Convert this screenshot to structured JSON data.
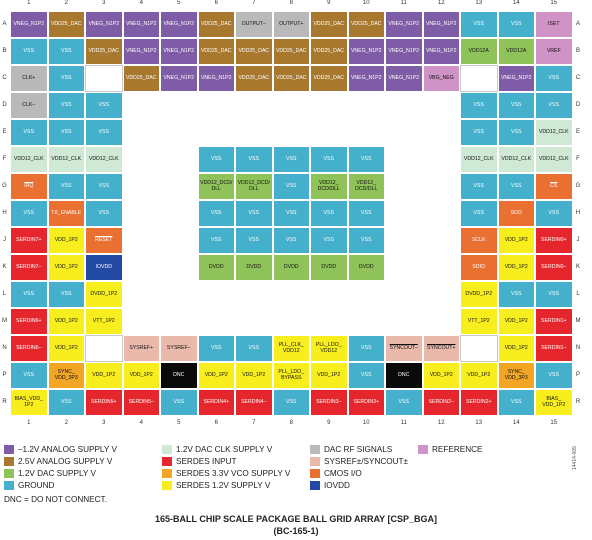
{
  "columns": [
    "1",
    "2",
    "3",
    "4",
    "5",
    "6",
    "7",
    "8",
    "9",
    "10",
    "11",
    "12",
    "13",
    "14",
    "15"
  ],
  "rows": [
    "A",
    "B",
    "C",
    "D",
    "E",
    "F",
    "G",
    "H",
    "J",
    "K",
    "L",
    "M",
    "N",
    "P",
    "R"
  ],
  "colors": {
    "analog_1v2": "#7f5da6",
    "analog_2v5": "#a8782f",
    "dac_1v2": "#8fc35a",
    "ground": "#45b0cb",
    "dac_clk": "#cfe9d4",
    "serdes_in": "#e5272d",
    "serdes_vco": "#f2a623",
    "serdes_1v2": "#f8ee1e",
    "dac_rf": "#b9b9b9",
    "sysref": "#eab9ac",
    "cmos": "#ea7032",
    "iovdd": "#2249a3",
    "reference": "#cf93c6",
    "dnc": "#0a0a0a"
  },
  "balls": [
    {
      "row": 0,
      "col": 0,
      "label": "VNEG_N1P2",
      "type": "analog_1v2"
    },
    {
      "row": 0,
      "col": 1,
      "label": "VDD25_DAC",
      "type": "analog_2v5"
    },
    {
      "row": 0,
      "col": 2,
      "label": "VNEG_N1P2",
      "type": "analog_1v2"
    },
    {
      "row": 0,
      "col": 3,
      "label": "VNEG_N1P2",
      "type": "analog_1v2"
    },
    {
      "row": 0,
      "col": 4,
      "label": "VNEG_N1P2",
      "type": "analog_1v2"
    },
    {
      "row": 0,
      "col": 5,
      "label": "VDD25_DAC",
      "type": "analog_2v5"
    },
    {
      "row": 0,
      "col": 6,
      "label": "OUTPUT–",
      "type": "dac_rf"
    },
    {
      "row": 0,
      "col": 7,
      "label": "OUTPUT+",
      "type": "dac_rf"
    },
    {
      "row": 0,
      "col": 8,
      "label": "VDD25_DAC",
      "type": "analog_2v5"
    },
    {
      "row": 0,
      "col": 9,
      "label": "VDD25_DAC",
      "type": "analog_2v5"
    },
    {
      "row": 0,
      "col": 10,
      "label": "VNEG_N1P2",
      "type": "analog_1v2"
    },
    {
      "row": 0,
      "col": 11,
      "label": "VNEG_N1P2",
      "type": "analog_1v2"
    },
    {
      "row": 0,
      "col": 12,
      "label": "VSS",
      "type": "ground"
    },
    {
      "row": 0,
      "col": 13,
      "label": "VSS",
      "type": "ground"
    },
    {
      "row": 0,
      "col": 14,
      "label": "ISET",
      "type": "reference"
    },
    {
      "row": 1,
      "col": 0,
      "label": "VSS",
      "type": "ground"
    },
    {
      "row": 1,
      "col": 1,
      "label": "VSS",
      "type": "ground"
    },
    {
      "row": 1,
      "col": 2,
      "label": "VDD25_DAC",
      "type": "analog_2v5"
    },
    {
      "row": 1,
      "col": 3,
      "label": "VNEG_N1P2",
      "type": "analog_1v2"
    },
    {
      "row": 1,
      "col": 4,
      "label": "VNEG_N1P2",
      "type": "analog_1v2"
    },
    {
      "row": 1,
      "col": 5,
      "label": "VDD25_DAC",
      "type": "analog_2v5"
    },
    {
      "row": 1,
      "col": 6,
      "label": "VDD25_DAC",
      "type": "analog_2v5"
    },
    {
      "row": 1,
      "col": 7,
      "label": "VDD25_DAC",
      "type": "analog_2v5"
    },
    {
      "row": 1,
      "col": 8,
      "label": "VDD25_DAC",
      "type": "analog_2v5"
    },
    {
      "row": 1,
      "col": 9,
      "label": "VNEG_N1P2",
      "type": "analog_1v2"
    },
    {
      "row": 1,
      "col": 10,
      "label": "VNEG_N1P2",
      "type": "analog_1v2"
    },
    {
      "row": 1,
      "col": 11,
      "label": "VNEG_N1P2",
      "type": "analog_1v2"
    },
    {
      "row": 1,
      "col": 12,
      "label": "VDD12A",
      "type": "dac_1v2"
    },
    {
      "row": 1,
      "col": 13,
      "label": "VDD12A",
      "type": "dac_1v2"
    },
    {
      "row": 1,
      "col": 14,
      "label": "VREF",
      "type": "reference"
    },
    {
      "row": 2,
      "col": 0,
      "label": "CLK+",
      "type": "dac_rf"
    },
    {
      "row": 2,
      "col": 1,
      "label": "VSS",
      "type": "ground"
    },
    {
      "row": 2,
      "col": 3,
      "label": "VDD25_DAC",
      "type": "analog_2v5"
    },
    {
      "row": 2,
      "col": 4,
      "label": "VNEG_N1P2",
      "type": "analog_1v2"
    },
    {
      "row": 2,
      "col": 5,
      "label": "VNEG_N1P2",
      "type": "analog_1v2"
    },
    {
      "row": 2,
      "col": 6,
      "label": "VDD25_DAC",
      "type": "analog_2v5"
    },
    {
      "row": 2,
      "col": 7,
      "label": "VDD25_DAC",
      "type": "analog_2v5"
    },
    {
      "row": 2,
      "col": 8,
      "label": "VDD25_DAC",
      "type": "analog_2v5"
    },
    {
      "row": 2,
      "col": 9,
      "label": "VNEG_N1P2",
      "type": "analog_1v2"
    },
    {
      "row": 2,
      "col": 10,
      "label": "VNEG_N1P2",
      "type": "analog_1v2"
    },
    {
      "row": 2,
      "col": 11,
      "label": "VBG_NEG",
      "type": "reference"
    },
    {
      "row": 2,
      "col": 13,
      "label": "VNEG_N1P2",
      "type": "analog_1v2"
    },
    {
      "row": 2,
      "col": 14,
      "label": "VSS",
      "type": "ground"
    },
    {
      "row": 3,
      "col": 0,
      "label": "CLK–",
      "type": "dac_rf"
    },
    {
      "row": 3,
      "col": 1,
      "label": "VSS",
      "type": "ground"
    },
    {
      "row": 3,
      "col": 2,
      "label": "VSS",
      "type": "ground"
    },
    {
      "row": 3,
      "col": 12,
      "label": "VSS",
      "type": "ground"
    },
    {
      "row": 3,
      "col": 13,
      "label": "VSS",
      "type": "ground"
    },
    {
      "row": 3,
      "col": 14,
      "label": "VSS",
      "type": "ground"
    },
    {
      "row": 4,
      "col": 0,
      "label": "VSS",
      "type": "ground"
    },
    {
      "row": 4,
      "col": 1,
      "label": "VSS",
      "type": "ground"
    },
    {
      "row": 4,
      "col": 2,
      "label": "VSS",
      "type": "ground"
    },
    {
      "row": 4,
      "col": 12,
      "label": "VSS",
      "type": "ground"
    },
    {
      "row": 4,
      "col": 13,
      "label": "VSS",
      "type": "ground"
    },
    {
      "row": 4,
      "col": 14,
      "label": "VDD12_CLK",
      "type": "dac_clk"
    },
    {
      "row": 5,
      "col": 0,
      "label": "VDD12_CLK",
      "type": "dac_clk"
    },
    {
      "row": 5,
      "col": 1,
      "label": "VDD12_CLK",
      "type": "dac_clk"
    },
    {
      "row": 5,
      "col": 2,
      "label": "VDD12_CLK",
      "type": "dac_clk"
    },
    {
      "row": 5,
      "col": 5,
      "label": "VSS",
      "type": "ground"
    },
    {
      "row": 5,
      "col": 6,
      "label": "VSS",
      "type": "ground"
    },
    {
      "row": 5,
      "col": 7,
      "label": "VSS",
      "type": "ground"
    },
    {
      "row": 5,
      "col": 8,
      "label": "VSS",
      "type": "ground"
    },
    {
      "row": 5,
      "col": 9,
      "label": "VSS",
      "type": "ground"
    },
    {
      "row": 5,
      "col": 12,
      "label": "VDD12_CLK",
      "type": "dac_clk"
    },
    {
      "row": 5,
      "col": 13,
      "label": "VDD12_CLK",
      "type": "dac_clk"
    },
    {
      "row": 5,
      "col": 14,
      "label": "VDD12_CLK",
      "type": "dac_clk"
    },
    {
      "row": 6,
      "col": 0,
      "label": "IRQ",
      "type": "cmos",
      "overline": true
    },
    {
      "row": 6,
      "col": 1,
      "label": "VSS",
      "type": "ground"
    },
    {
      "row": 6,
      "col": 2,
      "label": "VSS",
      "type": "ground"
    },
    {
      "row": 6,
      "col": 5,
      "label": "VDD12_DCD/ DLL",
      "type": "dac_1v2"
    },
    {
      "row": 6,
      "col": 6,
      "label": "VDD12_DCD/ DLL",
      "type": "dac_1v2"
    },
    {
      "row": 6,
      "col": 7,
      "label": "VSS",
      "type": "ground"
    },
    {
      "row": 6,
      "col": 8,
      "label": "VDD12_ DCD/DLL",
      "type": "dac_1v2"
    },
    {
      "row": 6,
      "col": 9,
      "label": "VDD12_ DCD/DLL",
      "type": "dac_1v2"
    },
    {
      "row": 6,
      "col": 12,
      "label": "VSS",
      "type": "ground"
    },
    {
      "row": 6,
      "col": 13,
      "label": "VSS",
      "type": "ground"
    },
    {
      "row": 6,
      "col": 14,
      "label": "CS",
      "type": "cmos",
      "overline": true
    },
    {
      "row": 7,
      "col": 0,
      "label": "VSS",
      "type": "ground"
    },
    {
      "row": 7,
      "col": 1,
      "label": "TX_ENABLE",
      "type": "cmos"
    },
    {
      "row": 7,
      "col": 2,
      "label": "VSS",
      "type": "ground"
    },
    {
      "row": 7,
      "col": 5,
      "label": "VSS",
      "type": "ground"
    },
    {
      "row": 7,
      "col": 6,
      "label": "VSS",
      "type": "ground"
    },
    {
      "row": 7,
      "col": 7,
      "label": "VSS",
      "type": "ground"
    },
    {
      "row": 7,
      "col": 8,
      "label": "VSS",
      "type": "ground"
    },
    {
      "row": 7,
      "col": 9,
      "label": "VSS",
      "type": "ground"
    },
    {
      "row": 7,
      "col": 12,
      "label": "VSS",
      "type": "ground"
    },
    {
      "row": 7,
      "col": 13,
      "label": "SDO",
      "type": "cmos"
    },
    {
      "row": 7,
      "col": 14,
      "label": "VSS",
      "type": "ground"
    },
    {
      "row": 8,
      "col": 0,
      "label": "SERDIN7+",
      "type": "serdes_in"
    },
    {
      "row": 8,
      "col": 1,
      "label": "VDD_1P2",
      "type": "serdes_1v2"
    },
    {
      "row": 8,
      "col": 2,
      "label": "RESET",
      "type": "cmos",
      "overline": true
    },
    {
      "row": 8,
      "col": 5,
      "label": "VSS",
      "type": "ground"
    },
    {
      "row": 8,
      "col": 6,
      "label": "VSS",
      "type": "ground"
    },
    {
      "row": 8,
      "col": 7,
      "label": "VSS",
      "type": "ground"
    },
    {
      "row": 8,
      "col": 8,
      "label": "VSS",
      "type": "ground"
    },
    {
      "row": 8,
      "col": 9,
      "label": "VSS",
      "type": "ground"
    },
    {
      "row": 8,
      "col": 12,
      "label": "SCLK",
      "type": "cmos"
    },
    {
      "row": 8,
      "col": 13,
      "label": "VDD_1P2",
      "type": "serdes_1v2"
    },
    {
      "row": 8,
      "col": 14,
      "label": "SERDIN0+",
      "type": "serdes_in"
    },
    {
      "row": 9,
      "col": 0,
      "label": "SERDIN7–",
      "type": "serdes_in"
    },
    {
      "row": 9,
      "col": 1,
      "label": "VDD_1P2",
      "type": "serdes_1v2"
    },
    {
      "row": 9,
      "col": 2,
      "label": "IOVDD",
      "type": "iovdd"
    },
    {
      "row": 9,
      "col": 5,
      "label": "DVDD",
      "type": "dac_1v2"
    },
    {
      "row": 9,
      "col": 6,
      "label": "DVDD",
      "type": "dac_1v2"
    },
    {
      "row": 9,
      "col": 7,
      "label": "DVDD",
      "type": "dac_1v2"
    },
    {
      "row": 9,
      "col": 8,
      "label": "DVDD",
      "type": "dac_1v2"
    },
    {
      "row": 9,
      "col": 9,
      "label": "DVDD",
      "type": "dac_1v2"
    },
    {
      "row": 9,
      "col": 12,
      "label": "SDIO",
      "type": "cmos"
    },
    {
      "row": 9,
      "col": 13,
      "label": "VDD_1P2",
      "type": "serdes_1v2"
    },
    {
      "row": 9,
      "col": 14,
      "label": "SERDIN0–",
      "type": "serdes_in"
    },
    {
      "row": 10,
      "col": 0,
      "label": "VSS",
      "type": "ground"
    },
    {
      "row": 10,
      "col": 1,
      "label": "VSS",
      "type": "ground"
    },
    {
      "row": 10,
      "col": 2,
      "label": "DVDD_1P2",
      "type": "serdes_1v2"
    },
    {
      "row": 10,
      "col": 12,
      "label": "DVDD_1P2",
      "type": "serdes_1v2"
    },
    {
      "row": 10,
      "col": 13,
      "label": "VSS",
      "type": "ground"
    },
    {
      "row": 10,
      "col": 14,
      "label": "VSS",
      "type": "ground"
    },
    {
      "row": 11,
      "col": 0,
      "label": "SERDIN6+",
      "type": "serdes_in"
    },
    {
      "row": 11,
      "col": 1,
      "label": "VDD_1P2",
      "type": "serdes_1v2"
    },
    {
      "row": 11,
      "col": 2,
      "label": "VTT_1P2",
      "type": "serdes_1v2"
    },
    {
      "row": 11,
      "col": 12,
      "label": "VTT_1P2",
      "type": "serdes_1v2"
    },
    {
      "row": 11,
      "col": 13,
      "label": "VDD_1P2",
      "type": "serdes_1v2"
    },
    {
      "row": 11,
      "col": 14,
      "label": "SERDIN1+",
      "type": "serdes_in"
    },
    {
      "row": 12,
      "col": 0,
      "label": "SERDIN6–",
      "type": "serdes_in"
    },
    {
      "row": 12,
      "col": 1,
      "label": "VDD_1P2",
      "type": "serdes_1v2"
    },
    {
      "row": 12,
      "col": 3,
      "label": "SYSREF+",
      "type": "sysref"
    },
    {
      "row": 12,
      "col": 4,
      "label": "SYSREF–",
      "type": "sysref"
    },
    {
      "row": 12,
      "col": 5,
      "label": "VSS",
      "type": "ground"
    },
    {
      "row": 12,
      "col": 6,
      "label": "VSS",
      "type": "ground"
    },
    {
      "row": 12,
      "col": 7,
      "label": "PLL_CLK_ VDD12",
      "type": "serdes_1v2"
    },
    {
      "row": 12,
      "col": 8,
      "label": "PLL_LDO_ VDD12",
      "type": "serdes_1v2"
    },
    {
      "row": 12,
      "col": 9,
      "label": "VSS",
      "type": "ground"
    },
    {
      "row": 12,
      "col": 10,
      "label": "SYNCOUT–",
      "type": "sysref",
      "overline": true
    },
    {
      "row": 12,
      "col": 11,
      "label": "SYNCOUT+",
      "type": "sysref",
      "overline": true
    },
    {
      "row": 12,
      "col": 13,
      "label": "VDD_1P2",
      "type": "serdes_1v2"
    },
    {
      "row": 12,
      "col": 14,
      "label": "SERDIN1–",
      "type": "serdes_in"
    },
    {
      "row": 13,
      "col": 0,
      "label": "VSS",
      "type": "ground"
    },
    {
      "row": 13,
      "col": 1,
      "label": "SYNC_ VDD_3P3",
      "type": "serdes_vco"
    },
    {
      "row": 13,
      "col": 2,
      "label": "VDD_1P2",
      "type": "serdes_1v2"
    },
    {
      "row": 13,
      "col": 3,
      "label": "VDD_1P2",
      "type": "serdes_1v2"
    },
    {
      "row": 13,
      "col": 4,
      "label": "DNC",
      "type": "dnc"
    },
    {
      "row": 13,
      "col": 5,
      "label": "VDD_1P2",
      "type": "serdes_1v2"
    },
    {
      "row": 13,
      "col": 6,
      "label": "VDD_1P2",
      "type": "serdes_1v2"
    },
    {
      "row": 13,
      "col": 7,
      "label": "PLL_LDO_ BYPASS",
      "type": "serdes_1v2"
    },
    {
      "row": 13,
      "col": 8,
      "label": "VDD_1P2",
      "type": "serdes_1v2"
    },
    {
      "row": 13,
      "col": 9,
      "label": "VSS",
      "type": "ground"
    },
    {
      "row": 13,
      "col": 10,
      "label": "DNC",
      "type": "dnc"
    },
    {
      "row": 13,
      "col": 11,
      "label": "VDD_1P2",
      "type": "serdes_1v2"
    },
    {
      "row": 13,
      "col": 12,
      "label": "VDD_1P2",
      "type": "serdes_1v2"
    },
    {
      "row": 13,
      "col": 13,
      "label": "SYNC_ VDD_3P3",
      "type": "serdes_vco"
    },
    {
      "row": 13,
      "col": 14,
      "label": "VSS",
      "type": "ground"
    },
    {
      "row": 14,
      "col": 0,
      "label": "BIAS_VDD_ 1P2",
      "type": "serdes_1v2"
    },
    {
      "row": 14,
      "col": 1,
      "label": "VSS",
      "type": "ground"
    },
    {
      "row": 14,
      "col": 2,
      "label": "SERDIN5+",
      "type": "serdes_in"
    },
    {
      "row": 14,
      "col": 3,
      "label": "SERDIN5–",
      "type": "serdes_in"
    },
    {
      "row": 14,
      "col": 4,
      "label": "VSS",
      "type": "ground"
    },
    {
      "row": 14,
      "col": 5,
      "label": "SERDIN4+",
      "type": "serdes_in"
    },
    {
      "row": 14,
      "col": 6,
      "label": "SERDIN4–",
      "type": "serdes_in"
    },
    {
      "row": 14,
      "col": 7,
      "label": "VSS",
      "type": "ground"
    },
    {
      "row": 14,
      "col": 8,
      "label": "SERDIN3–",
      "type": "serdes_in"
    },
    {
      "row": 14,
      "col": 9,
      "label": "SERDIN3+",
      "type": "serdes_in"
    },
    {
      "row": 14,
      "col": 10,
      "label": "VSS",
      "type": "ground"
    },
    {
      "row": 14,
      "col": 11,
      "label": "SERDIN2–",
      "type": "serdes_in"
    },
    {
      "row": 14,
      "col": 12,
      "label": "SERDIN2+",
      "type": "serdes_in"
    },
    {
      "row": 14,
      "col": 13,
      "label": "VSS",
      "type": "ground"
    },
    {
      "row": 14,
      "col": 14,
      "label": "BIAS_ VDD_1P2",
      "type": "serdes_1v2"
    }
  ],
  "empty_cells": [
    [
      2,
      2
    ],
    [
      2,
      12
    ],
    [
      12,
      2
    ],
    [
      12,
      12
    ]
  ],
  "legend": [
    {
      "type": "analog_1v2",
      "label": "–1.2V ANALOG SUPPLY V"
    },
    {
      "type": "analog_2v5",
      "label": "2.5V ANALOG SUPPLY V"
    },
    {
      "type": "dac_1v2",
      "label": "1.2V DAC SUPPLY V"
    },
    {
      "type": "ground",
      "label": "GROUND"
    },
    {
      "type": "dac_clk",
      "label": "1.2V DAC CLK SUPPLY V"
    },
    {
      "type": "serdes_in",
      "label": "SERDES INPUT"
    },
    {
      "type": "serdes_vco",
      "label": "SERDES 3.3V VCO SUPPLY V"
    },
    {
      "type": "serdes_1v2",
      "label": "SERDES 1.2V SUPPLY V"
    },
    {
      "type": "dac_rf",
      "label": "DAC RF SIGNALS"
    },
    {
      "type": "sysref",
      "label": "SYSREF±/SYNCOUT±",
      "overline": true
    },
    {
      "type": "cmos",
      "label": "CMOS I/O"
    },
    {
      "type": "iovdd",
      "label": "IOVDD"
    },
    {
      "type": "reference",
      "label": "REFERENCE"
    }
  ],
  "dnc_note": "DNC = DO NOT CONNECT.",
  "title_line1": "165-BALL CHIP SCALE PACKAGE BALL GRID ARRAY [CSP_BGA]",
  "title_line2": "(BC-165-1)",
  "figure_id": "14414-005"
}
